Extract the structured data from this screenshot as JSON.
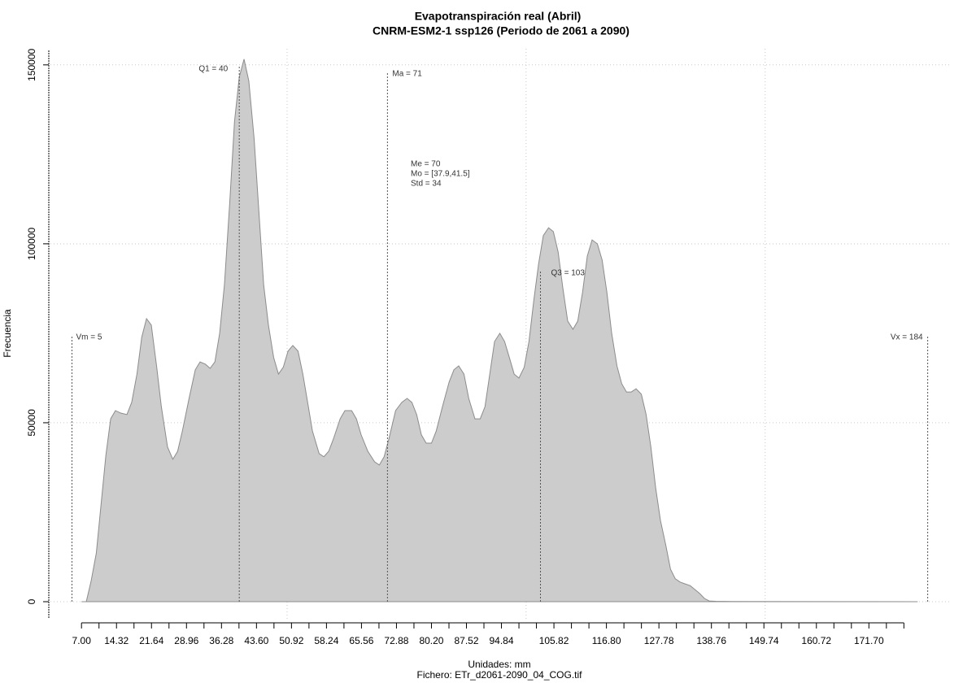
{
  "chart_data": {
    "type": "area",
    "title": "Evapotranspiración real (Abril)",
    "subtitle": "CNRM-ESM2-1 ssp126 (Periodo de 2061 a 2090)",
    "xlabel": "Unidades: mm",
    "caption": "Fichero: ETr_d2061-2090_04_COG.tif",
    "ylabel": "Frecuencia",
    "color": "#cccccc",
    "line_color": "#8c8c8c",
    "x": [
      7.0,
      8.0,
      9.0,
      10.1,
      11.1,
      12.1,
      13.1,
      14.1,
      15.2,
      16.5,
      17.5,
      18.6,
      19.6,
      20.6,
      21.6,
      22.7,
      23.7,
      25.0,
      26.1,
      27.1,
      28.1,
      29.5,
      30.8,
      31.8,
      32.9,
      33.9,
      34.9,
      35.9,
      36.9,
      38.0,
      39.0,
      40.0,
      41.0,
      42.0,
      43.1,
      44.1,
      45.1,
      46.1,
      47.2,
      48.2,
      49.2,
      50.2,
      51.2,
      52.3,
      53.3,
      54.3,
      55.3,
      56.7,
      57.7,
      58.7,
      59.7,
      61.1,
      62.1,
      63.5,
      64.5,
      65.5,
      66.9,
      68.3,
      69.3,
      70.3,
      71.3,
      72.7,
      74.0,
      75.1,
      76.1,
      77.1,
      78.1,
      79.1,
      80.2,
      81.2,
      82.5,
      83.9,
      84.9,
      85.9,
      87.0,
      88.0,
      89.3,
      90.4,
      91.4,
      92.4,
      93.4,
      94.5,
      95.5,
      96.5,
      97.5,
      98.5,
      99.6,
      100.6,
      101.6,
      102.6,
      103.6,
      104.7,
      105.7,
      106.7,
      107.7,
      108.7,
      109.8,
      110.8,
      111.8,
      112.8,
      113.8,
      114.9,
      115.9,
      116.9,
      117.9,
      119.0,
      120.0,
      121.0,
      122.0,
      123.0,
      124.1,
      125.1,
      126.1,
      127.1,
      128.1,
      129.2,
      130.2,
      131.2,
      132.2,
      133.2,
      134.3,
      135.3,
      136.3,
      137.3,
      138.3,
      139.7,
      143.1,
      160.1,
      181.9
    ],
    "values": [
      0,
      0,
      5700,
      13600,
      27300,
      40900,
      51100,
      53400,
      52700,
      52300,
      55700,
      63600,
      73900,
      79100,
      77300,
      65900,
      54500,
      43200,
      39800,
      42000,
      47700,
      56800,
      64800,
      67000,
      66400,
      65200,
      67000,
      75000,
      88600,
      111400,
      134100,
      146600,
      151600,
      145500,
      129500,
      109100,
      88600,
      77300,
      68200,
      63600,
      65500,
      70000,
      71600,
      70000,
      63600,
      55700,
      47700,
      41400,
      40500,
      42000,
      45500,
      51100,
      53400,
      53400,
      51100,
      46600,
      42000,
      39100,
      38200,
      40500,
      45500,
      53400,
      55700,
      56800,
      55700,
      52300,
      46600,
      44300,
      44300,
      47700,
      54500,
      61400,
      64800,
      65900,
      63600,
      56800,
      51100,
      51100,
      54500,
      63600,
      72700,
      75000,
      72700,
      68200,
      63600,
      62500,
      65500,
      72700,
      84100,
      94300,
      102300,
      104500,
      103400,
      97700,
      87500,
      78400,
      76100,
      78400,
      86400,
      96600,
      101100,
      100000,
      95500,
      86400,
      75000,
      65900,
      60900,
      58600,
      58600,
      59500,
      58000,
      52300,
      43200,
      31800,
      22700,
      15900,
      9100,
      6400,
      5500,
      5000,
      4500,
      3400,
      2300,
      900,
      200,
      100,
      50,
      20,
      0
    ],
    "xlim": [
      0.5,
      189
    ],
    "ylim": [
      -5000,
      154500
    ],
    "yticks": [
      0,
      50000,
      100000,
      150000
    ],
    "xticks": [
      {
        "value": 7,
        "label": "7.00"
      },
      14.32,
      21.64,
      28.96,
      36.28,
      {
        "value": 43.6,
        "label": "43.60"
      },
      50.92,
      58.24,
      65.56,
      72.88,
      {
        "value": 80.2,
        "label": "80.20"
      },
      87.52,
      94.84,
      105.82,
      {
        "value": 116.8,
        "label": "116.80"
      },
      127.78,
      138.76,
      149.74,
      160.72,
      {
        "value": 171.7,
        "label": "171.70"
      }
    ],
    "xtick_marks": [
      7,
      10.66,
      14.32,
      17.98,
      21.64,
      25.3,
      28.96,
      32.62,
      36.28,
      39.94,
      43.6,
      47.26,
      50.92,
      54.58,
      58.24,
      61.9,
      65.56,
      69.22,
      72.88,
      76.54,
      80.2,
      83.86,
      87.52,
      91.18,
      94.84,
      98.5,
      102.16,
      105.82,
      109.48,
      113.14,
      116.8,
      120.46,
      124.12,
      127.78,
      131.44,
      135.1,
      138.76,
      142.42,
      146.08,
      149.74,
      153.4,
      157.06,
      160.72,
      164.38,
      168.04,
      171.7,
      175.36,
      179.02
    ],
    "xgrid": [
      50,
      100,
      150
    ],
    "grid": true,
    "markers": [
      {
        "label": "Vm = 5",
        "value": 5
      },
      {
        "label": "Q1 = 40",
        "value": 40
      },
      {
        "label": "Ma = 71",
        "value": 71
      },
      {
        "label": "Q3 = 103",
        "value": 103
      },
      {
        "label": "Vx = 184",
        "value": 184
      }
    ],
    "stats": [
      "Me = 70",
      "Mo = [37.9,41.5]",
      "Std = 34"
    ]
  }
}
